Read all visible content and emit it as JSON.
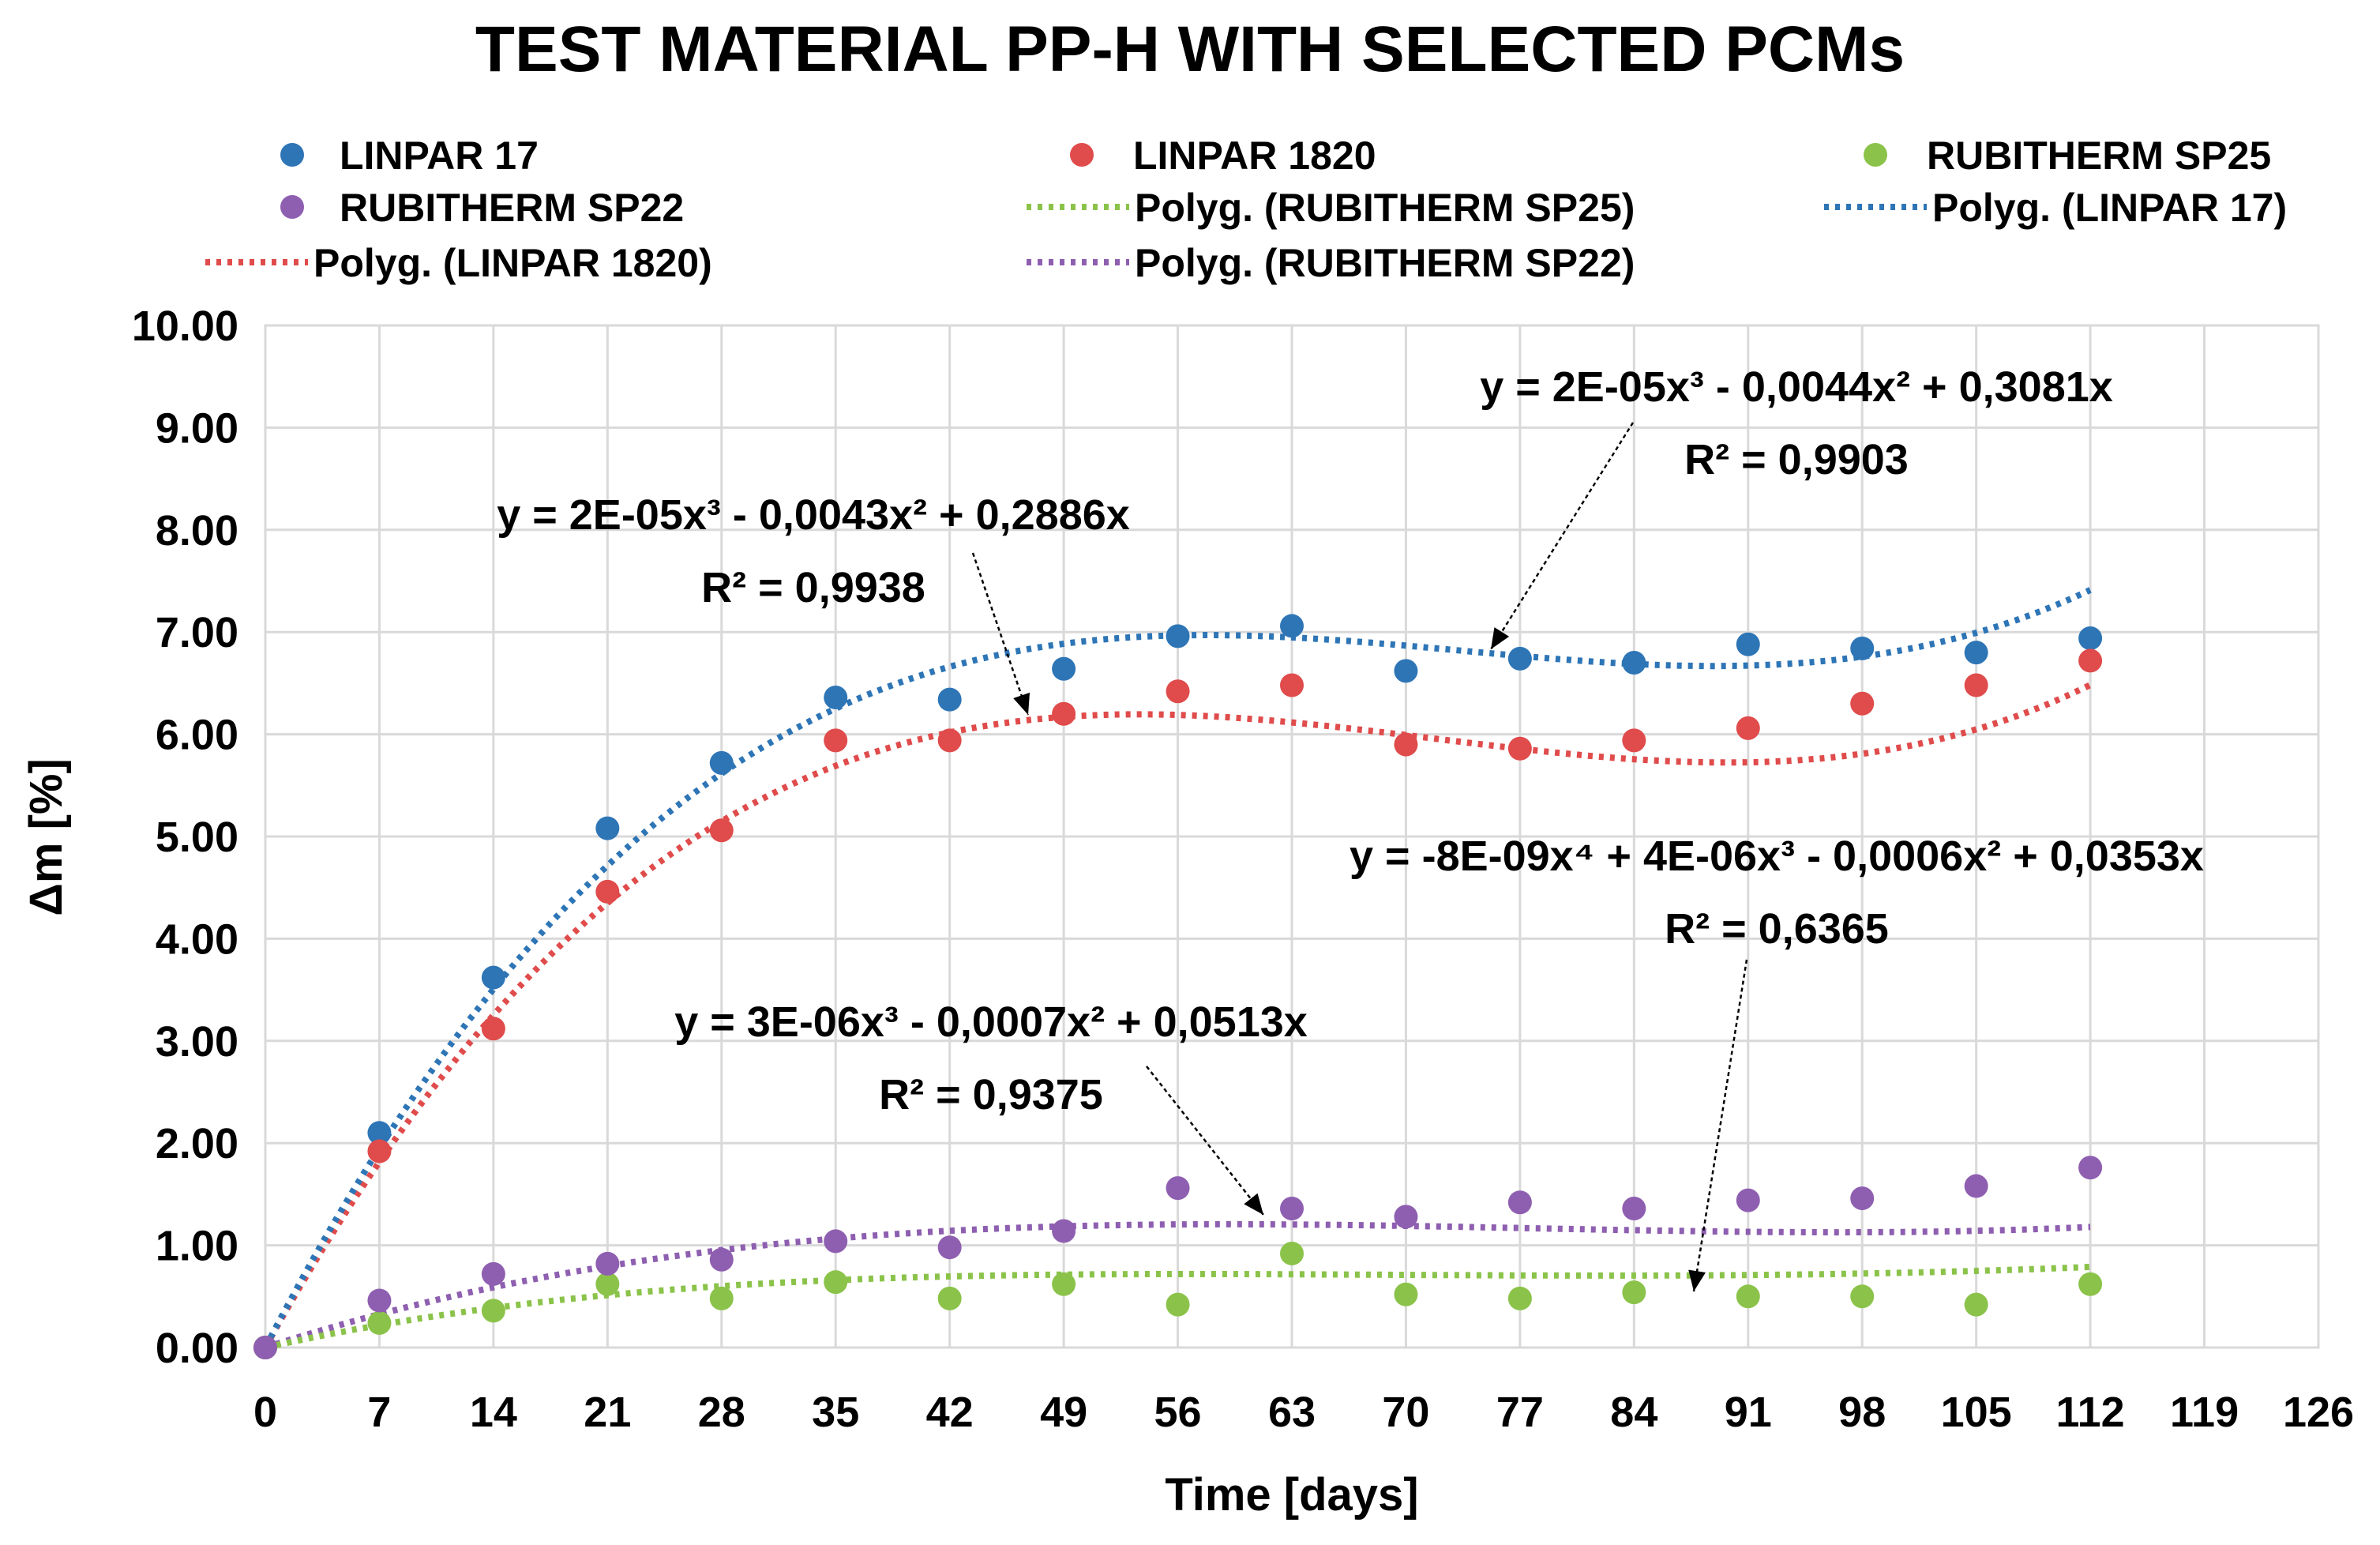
{
  "chart_data": {
    "type": "scatter",
    "title": "TEST MATERIAL PP-H WITH SELECTED PCMs",
    "xlabel": "Time [days]",
    "ylabel": "Δm [%]",
    "xlim": [
      0,
      126
    ],
    "ylim": [
      0,
      10
    ],
    "x_ticks": [
      "0",
      "7",
      "14",
      "21",
      "28",
      "35",
      "42",
      "49",
      "56",
      "63",
      "70",
      "77",
      "84",
      "91",
      "98",
      "105",
      "112",
      "119",
      "126"
    ],
    "y_ticks": [
      "0.00",
      "1.00",
      "2.00",
      "3.00",
      "4.00",
      "5.00",
      "6.00",
      "7.00",
      "8.00",
      "9.00",
      "10.00"
    ],
    "legend_position": "top",
    "x": [
      0,
      7,
      14,
      21,
      28,
      35,
      42,
      49,
      56,
      63,
      70,
      77,
      84,
      91,
      98,
      105,
      112
    ],
    "series": [
      {
        "name": "LINPAR 17",
        "color": "#2e75b6",
        "values": [
          0,
          2.1,
          3.62,
          5.08,
          5.72,
          6.36,
          6.34,
          6.64,
          6.96,
          7.06,
          6.62,
          6.74,
          6.7,
          6.88,
          6.84,
          6.8,
          6.94
        ]
      },
      {
        "name": "LINPAR 1820",
        "color": "#e04b4b",
        "values": [
          0,
          1.92,
          3.12,
          4.46,
          5.06,
          5.94,
          5.94,
          6.2,
          6.42,
          6.48,
          5.9,
          5.86,
          5.94,
          6.06,
          6.3,
          6.48,
          6.72
        ]
      },
      {
        "name": "RUBITHERM SP25",
        "color": "#8bc34a",
        "values": [
          0,
          0.24,
          0.36,
          0.62,
          0.48,
          0.64,
          0.48,
          0.62,
          0.42,
          0.92,
          0.52,
          0.48,
          0.54,
          0.5,
          0.5,
          0.42,
          0.62
        ]
      },
      {
        "name": "RUBITHERM SP22",
        "color": "#8e5fb0",
        "values": [
          0,
          0.46,
          0.72,
          0.82,
          0.86,
          1.04,
          0.98,
          1.14,
          1.56,
          1.36,
          1.28,
          1.42,
          1.36,
          1.44,
          1.46,
          1.58,
          1.76
        ]
      }
    ],
    "trendlines": [
      {
        "name": "Polyg. (RUBITHERM SP25)",
        "color": "#8bc34a",
        "coefficients": [
          0,
          0.0353,
          -0.0006,
          4e-06,
          -8e-09
        ],
        "equation": "y = -8E-09x⁴ + 4E-06x³ - 0,0006x² + 0,0353x",
        "r2": "R² = 0,6365"
      },
      {
        "name": "Polyg. (LINPAR 17)",
        "color": "#2e75b6",
        "coefficients": [
          0,
          0.3081,
          -0.0044,
          2e-05
        ],
        "equation": "y = 2E-05x³ - 0,0044x² + 0,3081x",
        "r2": "R² = 0,9903"
      },
      {
        "name": "Polyg. (LINPAR 1820)",
        "color": "#e04b4b",
        "coefficients": [
          0,
          0.2886,
          -0.0043,
          2e-05
        ],
        "equation": "y = 2E-05x³ - 0,0043x² + 0,2886x",
        "r2": "R² = 0,9938"
      },
      {
        "name": "Polyg. (RUBITHERM SP22)",
        "color": "#8e5fb0",
        "coefficients": [
          0,
          0.0513,
          -0.0007,
          3e-06
        ],
        "equation": "y = 3E-06x³ - 0,0007x² + 0,0513x",
        "r2": "R² = 0,9375"
      }
    ]
  }
}
